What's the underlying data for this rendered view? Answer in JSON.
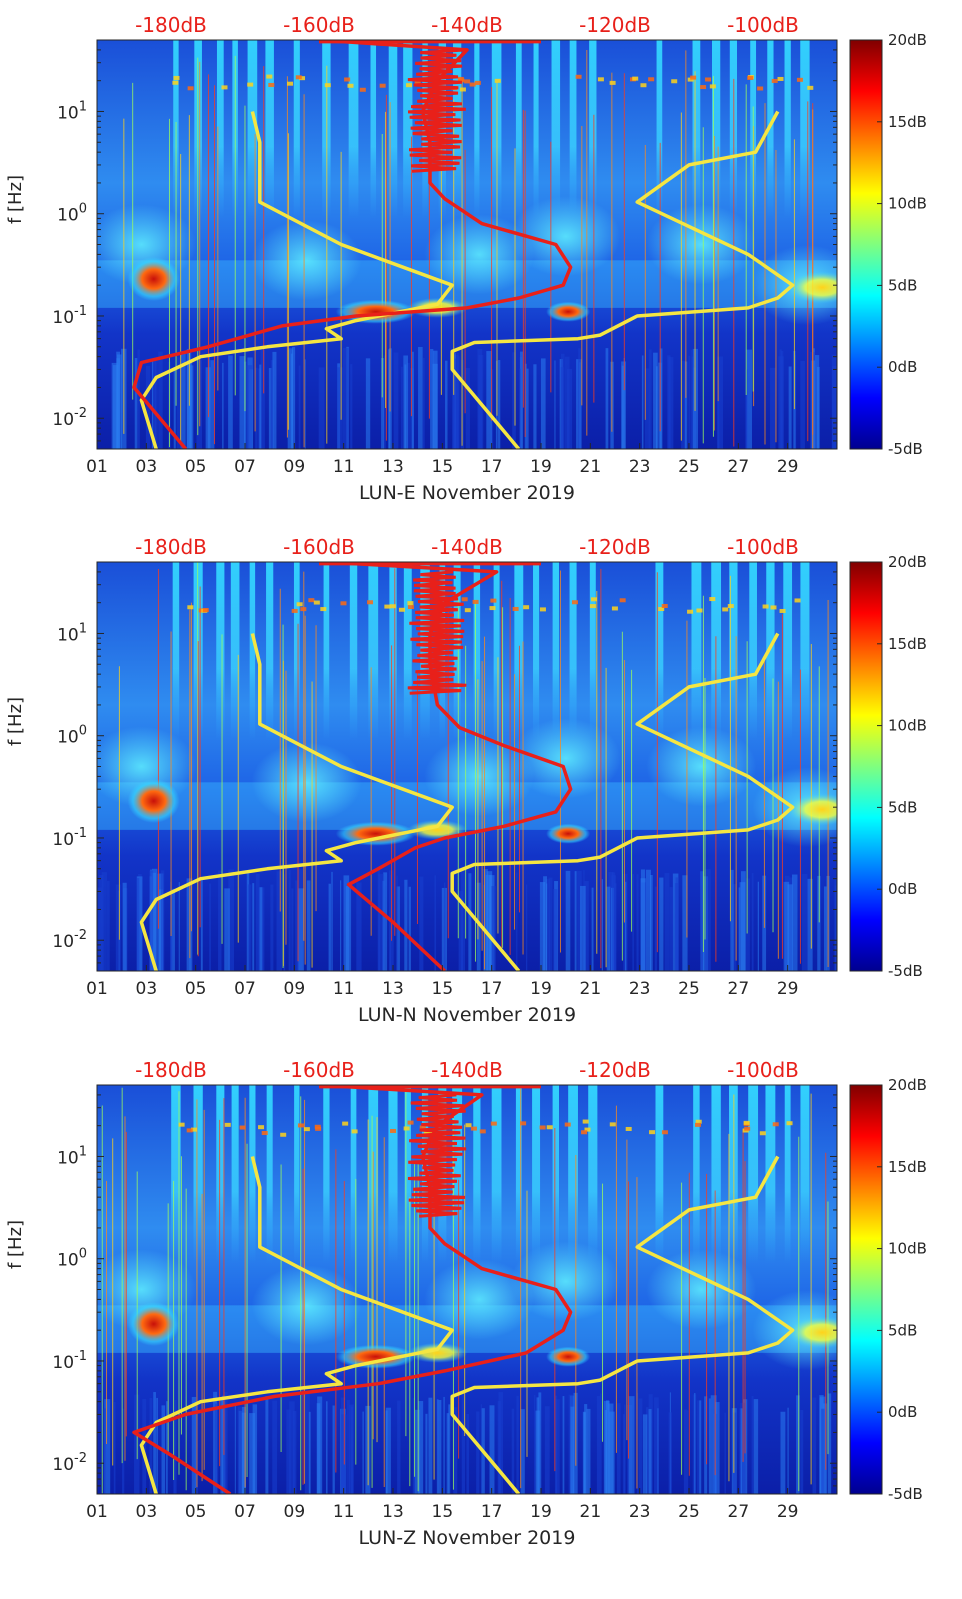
{
  "chart_data": [
    {
      "type": "heatmap",
      "station": "LUN-E",
      "xlabel": "LUN-E November 2019",
      "ylabel": "f [Hz]",
      "x_ticks": [
        "01",
        "03",
        "05",
        "07",
        "09",
        "11",
        "13",
        "15",
        "17",
        "19",
        "21",
        "23",
        "25",
        "27",
        "29"
      ],
      "y_ticks": [
        {
          "exp": "-2",
          "value": 0.01
        },
        {
          "exp": "-1",
          "value": 0.1
        },
        {
          "exp": "0",
          "value": 1
        },
        {
          "exp": "1",
          "value": 10
        }
      ],
      "ylim_hz": [
        0.005,
        50
      ],
      "xlim_day": [
        1,
        31
      ],
      "colorbar": {
        "labels": [
          "20dB",
          "15dB",
          "10dB",
          "5dB",
          "0dB",
          "-5dB"
        ],
        "range_db": [
          -5,
          20
        ]
      },
      "top_db_labels": [
        "-180dB",
        "-160dB",
        "-140dB",
        "-120dB",
        "-100dB"
      ],
      "psd_db_range": [
        -190,
        -90
      ],
      "noise_model_curves": [
        {
          "name": "low-noise-model",
          "color": "#f5e642",
          "points": [
            [
              -182,
              0.005
            ],
            [
              -184,
              0.015
            ],
            [
              -182,
              0.025
            ],
            [
              -176,
              0.04
            ],
            [
              -167,
              0.05
            ],
            [
              -157,
              0.06
            ],
            [
              -159,
              0.075
            ],
            [
              -155,
              0.09
            ],
            [
              -144,
              0.13
            ],
            [
              -142,
              0.2
            ],
            [
              -157,
              0.5
            ],
            [
              -168,
              1.3
            ],
            [
              -168,
              5
            ],
            [
              -169,
              10
            ]
          ]
        },
        {
          "name": "high-noise-model",
          "color": "#f5e642",
          "points": [
            [
              -133,
              0.005
            ],
            [
              -142,
              0.03
            ],
            [
              -142,
              0.045
            ],
            [
              -139,
              0.055
            ],
            [
              -125,
              0.06
            ],
            [
              -122,
              0.065
            ],
            [
              -117,
              0.1
            ],
            [
              -102,
              0.12
            ],
            [
              -98,
              0.15
            ],
            [
              -96,
              0.2
            ],
            [
              -102,
              0.4
            ],
            [
              -117,
              1.3
            ],
            [
              -110,
              3
            ],
            [
              -101,
              4
            ],
            [
              -98,
              10
            ]
          ]
        },
        {
          "name": "psd-median",
          "color": "#e8201a",
          "points": [
            [
              -178,
              0.005
            ],
            [
              -185,
              0.02
            ],
            [
              -184,
              0.035
            ],
            [
              -175,
              0.05
            ],
            [
              -165,
              0.08
            ],
            [
              -155,
              0.1
            ],
            [
              -140,
              0.12
            ],
            [
              -133,
              0.15
            ],
            [
              -127,
              0.2
            ],
            [
              -126,
              0.3
            ],
            [
              -128,
              0.5
            ],
            [
              -138,
              0.8
            ],
            [
              -143,
              1.4
            ],
            [
              -145,
              2
            ],
            [
              -145,
              5
            ],
            [
              -146,
              10
            ],
            [
              -144,
              20
            ],
            [
              -140,
              40
            ],
            [
              -160,
              50
            ]
          ]
        }
      ]
    },
    {
      "type": "heatmap",
      "station": "LUN-N",
      "xlabel": "LUN-N November 2019",
      "ylabel": "f [Hz]",
      "x_ticks": [
        "01",
        "03",
        "05",
        "07",
        "09",
        "11",
        "13",
        "15",
        "17",
        "19",
        "21",
        "23",
        "25",
        "27",
        "29"
      ],
      "y_ticks": [
        {
          "exp": "-2",
          "value": 0.01
        },
        {
          "exp": "-1",
          "value": 0.1
        },
        {
          "exp": "0",
          "value": 1
        },
        {
          "exp": "1",
          "value": 10
        }
      ],
      "ylim_hz": [
        0.005,
        50
      ],
      "xlim_day": [
        1,
        31
      ],
      "colorbar": {
        "labels": [
          "20dB",
          "15dB",
          "10dB",
          "5dB",
          "0dB",
          "-5dB"
        ],
        "range_db": [
          -5,
          20
        ]
      },
      "top_db_labels": [
        "-180dB",
        "-160dB",
        "-140dB",
        "-120dB",
        "-100dB"
      ],
      "psd_db_range": [
        -190,
        -90
      ],
      "noise_model_curves": [
        {
          "name": "low-noise-model",
          "color": "#f5e642",
          "points": [
            [
              -182,
              0.005
            ],
            [
              -184,
              0.015
            ],
            [
              -182,
              0.025
            ],
            [
              -176,
              0.04
            ],
            [
              -167,
              0.05
            ],
            [
              -157,
              0.06
            ],
            [
              -159,
              0.075
            ],
            [
              -155,
              0.09
            ],
            [
              -144,
              0.13
            ],
            [
              -142,
              0.2
            ],
            [
              -157,
              0.5
            ],
            [
              -168,
              1.3
            ],
            [
              -168,
              5
            ],
            [
              -169,
              10
            ]
          ]
        },
        {
          "name": "high-noise-model",
          "color": "#f5e642",
          "points": [
            [
              -133,
              0.005
            ],
            [
              -142,
              0.03
            ],
            [
              -142,
              0.045
            ],
            [
              -139,
              0.055
            ],
            [
              -125,
              0.06
            ],
            [
              -122,
              0.065
            ],
            [
              -117,
              0.1
            ],
            [
              -102,
              0.12
            ],
            [
              -98,
              0.15
            ],
            [
              -96,
              0.2
            ],
            [
              -102,
              0.4
            ],
            [
              -117,
              1.3
            ],
            [
              -110,
              3
            ],
            [
              -101,
              4
            ],
            [
              -98,
              10
            ]
          ]
        },
        {
          "name": "psd-median",
          "color": "#e8201a",
          "points": [
            [
              -143,
              0.005
            ],
            [
              -150,
              0.015
            ],
            [
              -156,
              0.035
            ],
            [
              -152,
              0.05
            ],
            [
              -147,
              0.08
            ],
            [
              -143,
              0.1
            ],
            [
              -135,
              0.13
            ],
            [
              -128,
              0.18
            ],
            [
              -126,
              0.3
            ],
            [
              -127,
              0.5
            ],
            [
              -135,
              0.8
            ],
            [
              -141,
              1.2
            ],
            [
              -144,
              2
            ],
            [
              -145,
              5
            ],
            [
              -145,
              10
            ],
            [
              -143,
              20
            ],
            [
              -136,
              40
            ],
            [
              -159,
              50
            ]
          ]
        }
      ]
    },
    {
      "type": "heatmap",
      "station": "LUN-Z",
      "xlabel": "LUN-Z November 2019",
      "ylabel": "f [Hz]",
      "x_ticks": [
        "01",
        "03",
        "05",
        "07",
        "09",
        "11",
        "13",
        "15",
        "17",
        "19",
        "21",
        "23",
        "25",
        "27",
        "29"
      ],
      "y_ticks": [
        {
          "exp": "-2",
          "value": 0.01
        },
        {
          "exp": "-1",
          "value": 0.1
        },
        {
          "exp": "0",
          "value": 1
        },
        {
          "exp": "1",
          "value": 10
        }
      ],
      "ylim_hz": [
        0.005,
        50
      ],
      "xlim_day": [
        1,
        31
      ],
      "colorbar": {
        "labels": [
          "20dB",
          "15dB",
          "10dB",
          "5dB",
          "0dB",
          "-5dB"
        ],
        "range_db": [
          -5,
          20
        ]
      },
      "top_db_labels": [
        "-180dB",
        "-160dB",
        "-140dB",
        "-120dB",
        "-100dB"
      ],
      "psd_db_range": [
        -190,
        -90
      ],
      "noise_model_curves": [
        {
          "name": "low-noise-model",
          "color": "#f5e642",
          "points": [
            [
              -182,
              0.005
            ],
            [
              -184,
              0.015
            ],
            [
              -182,
              0.025
            ],
            [
              -176,
              0.04
            ],
            [
              -167,
              0.05
            ],
            [
              -157,
              0.06
            ],
            [
              -159,
              0.075
            ],
            [
              -155,
              0.09
            ],
            [
              -144,
              0.13
            ],
            [
              -142,
              0.2
            ],
            [
              -157,
              0.5
            ],
            [
              -168,
              1.3
            ],
            [
              -168,
              5
            ],
            [
              -169,
              10
            ]
          ]
        },
        {
          "name": "high-noise-model",
          "color": "#f5e642",
          "points": [
            [
              -133,
              0.005
            ],
            [
              -142,
              0.03
            ],
            [
              -142,
              0.045
            ],
            [
              -139,
              0.055
            ],
            [
              -125,
              0.06
            ],
            [
              -122,
              0.065
            ],
            [
              -117,
              0.1
            ],
            [
              -102,
              0.12
            ],
            [
              -98,
              0.15
            ],
            [
              -96,
              0.2
            ],
            [
              -102,
              0.4
            ],
            [
              -117,
              1.3
            ],
            [
              -110,
              3
            ],
            [
              -101,
              4
            ],
            [
              -98,
              10
            ]
          ]
        },
        {
          "name": "psd-median",
          "color": "#e8201a",
          "points": [
            [
              -172,
              0.005
            ],
            [
              -180,
              0.012
            ],
            [
              -185,
              0.02
            ],
            [
              -178,
              0.03
            ],
            [
              -166,
              0.045
            ],
            [
              -152,
              0.06
            ],
            [
              -143,
              0.08
            ],
            [
              -132,
              0.12
            ],
            [
              -127,
              0.2
            ],
            [
              -126,
              0.3
            ],
            [
              -128,
              0.5
            ],
            [
              -138,
              0.8
            ],
            [
              -143,
              1.4
            ],
            [
              -145,
              2
            ],
            [
              -145,
              5
            ],
            [
              -146,
              10
            ],
            [
              -144,
              20
            ],
            [
              -138,
              40
            ],
            [
              -160,
              50
            ]
          ]
        }
      ]
    }
  ]
}
